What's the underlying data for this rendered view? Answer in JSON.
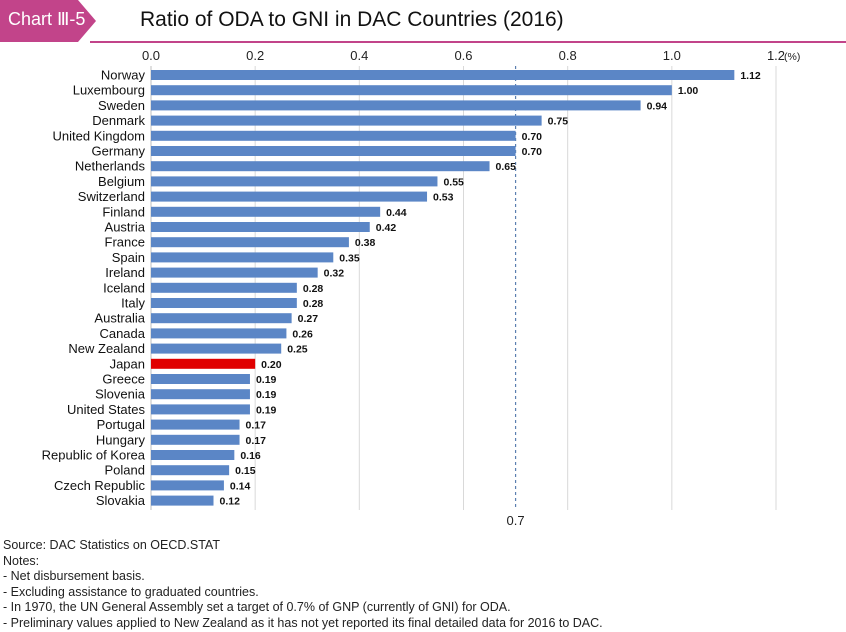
{
  "header": {
    "badge": "Chart Ⅲ-5",
    "title": "Ratio of ODA to GNI in DAC Countries (2016)"
  },
  "colors": {
    "bar": "#5b86c6",
    "highlight": "#e00000",
    "accent": "#c2448a",
    "grid": "#d9d9d9",
    "target_line": "#5b7fb0"
  },
  "chart_data": {
    "type": "bar",
    "orientation": "horizontal",
    "title": "Ratio of ODA to GNI in DAC Countries (2016)",
    "unit_label": "(%)",
    "xlim": [
      0,
      1.2
    ],
    "ticks": [
      "0.0",
      "0.2",
      "0.4",
      "0.6",
      "0.8",
      "1.0",
      "1.2"
    ],
    "tick_values": [
      0,
      0.2,
      0.4,
      0.6,
      0.8,
      1.0,
      1.2
    ],
    "target_line": {
      "value": 0.7,
      "label": "0.7"
    },
    "highlight": "Japan",
    "categories": [
      "Norway",
      "Luxembourg",
      "Sweden",
      "Denmark",
      "United Kingdom",
      "Germany",
      "Netherlands",
      "Belgium",
      "Switzerland",
      "Finland",
      "Austria",
      "France",
      "Spain",
      "Ireland",
      "Iceland",
      "Italy",
      "Australia",
      "Canada",
      "New Zealand",
      "Japan",
      "Greece",
      "Slovenia",
      "United States",
      "Portugal",
      "Hungary",
      "Republic of Korea",
      "Poland",
      "Czech Republic",
      "Slovakia"
    ],
    "values": [
      1.12,
      1.0,
      0.94,
      0.75,
      0.7,
      0.7,
      0.65,
      0.55,
      0.53,
      0.44,
      0.42,
      0.38,
      0.35,
      0.32,
      0.28,
      0.28,
      0.27,
      0.26,
      0.25,
      0.2,
      0.19,
      0.19,
      0.19,
      0.17,
      0.17,
      0.16,
      0.15,
      0.14,
      0.12
    ],
    "value_labels": [
      "1.12",
      "1.00",
      "0.94",
      "0.75",
      "0.70",
      "0.70",
      "0.65",
      "0.55",
      "0.53",
      "0.44",
      "0.42",
      "0.38",
      "0.35",
      "0.32",
      "0.28",
      "0.28",
      "0.27",
      "0.26",
      "0.25",
      "0.20",
      "0.19",
      "0.19",
      "0.19",
      "0.17",
      "0.17",
      "0.16",
      "0.15",
      "0.14",
      "0.12"
    ]
  },
  "notes": {
    "source": "Source: DAC Statistics on OECD.STAT",
    "heading": "Notes:",
    "items": [
      "- Net disbursement basis.",
      "- Excluding assistance to graduated countries.",
      "- In 1970, the UN General Assembly set a target of 0.7% of GNP (currently of GNI) for ODA.",
      "- Preliminary values applied to New Zealand as it has not yet reported its final detailed data for 2016 to DAC."
    ]
  }
}
